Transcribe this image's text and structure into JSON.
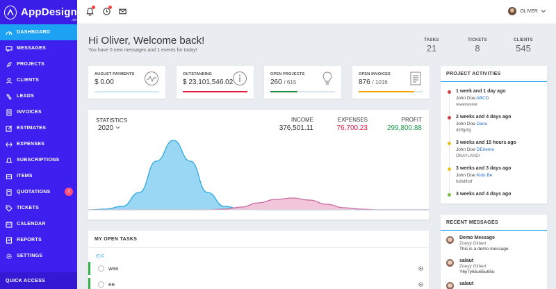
{
  "brand": {
    "name": "AppDesign",
    "sub": ".dev"
  },
  "sidebar": {
    "items": [
      {
        "label": "DASHBOARD",
        "icon": "dashboard-icon",
        "active": true
      },
      {
        "label": "MESSAGES",
        "icon": "message-icon"
      },
      {
        "label": "PROJECTS",
        "icon": "rocket-icon"
      },
      {
        "label": "CLIENTS",
        "icon": "users-icon"
      },
      {
        "label": "LEADS",
        "icon": "target-icon"
      },
      {
        "label": "INVOICES",
        "icon": "invoice-icon"
      },
      {
        "label": "ESTIMATES",
        "icon": "edit-icon"
      },
      {
        "label": "EXPENSES",
        "icon": "expenses-icon"
      },
      {
        "label": "SUBSCRIPTIONS",
        "icon": "bell-icon"
      },
      {
        "label": "ITEMS",
        "icon": "box-icon"
      },
      {
        "label": "QUOTATIONS",
        "icon": "quote-icon",
        "badge": "2"
      },
      {
        "label": "TICKETS",
        "icon": "tag-icon"
      },
      {
        "label": "CALENDAR",
        "icon": "calendar-icon"
      },
      {
        "label": "REPORTS",
        "icon": "report-icon"
      },
      {
        "label": "SETTINGS",
        "icon": "gear-icon"
      }
    ],
    "quick_access": "QUICK ACCESS"
  },
  "topbar": {
    "icons": [
      "bell-icon",
      "clock-icon",
      "mail-icon"
    ],
    "user": "OLIVER"
  },
  "welcome": {
    "title": "Hi Oliver, Welcome back!",
    "subtitle": "You have 0 new messages and 1 events for today!"
  },
  "stats": [
    {
      "label": "TASKS",
      "value": "21"
    },
    {
      "label": "TICKETS",
      "value": "8"
    },
    {
      "label": "CLIENTS",
      "value": "545"
    }
  ],
  "cards": [
    {
      "label": "AUGUST PAYMENTS",
      "value": "$ 0.00",
      "sub": "",
      "fill": 1.0,
      "color": "#cfe9f8",
      "icon": "pulse-icon"
    },
    {
      "label": "OUTSTANDING",
      "value": "$ 23,101,546.02",
      "sub": "",
      "fill": 1.0,
      "color": "#e5193b",
      "icon": "info-icon"
    },
    {
      "label": "OPEN PROJECTS",
      "value": "260",
      "sub": "/ 615",
      "fill": 0.42,
      "color": "#1e8e3e",
      "icon": "bulb-icon"
    },
    {
      "label": "OPEN INVOICES",
      "value": "876",
      "sub": "/ 1016",
      "fill": 0.86,
      "color": "#f0a500",
      "icon": "document-icon"
    }
  ],
  "statistics": {
    "label": "STATISTICS",
    "year": "2020",
    "income_label": "INCOME",
    "income": "376,501.11",
    "expenses_label": "EXPENSES",
    "expenses": "76,700.23",
    "profit_label": "PROFIT",
    "profit": "299,800.88"
  },
  "chart_data": {
    "type": "area",
    "series": [
      {
        "values": [
          0.0,
          0.01,
          0.05,
          0.25,
          0.7,
          1.0,
          0.7,
          0.25,
          0.05,
          0.01,
          0.0,
          0.0,
          0.0,
          0.0,
          0.0,
          0.0,
          0.0,
          0.0,
          0.0,
          0.0,
          0.0
        ]
      },
      {
        "values": [
          0.0,
          0.0,
          0.0,
          0.0,
          0.0,
          0.0,
          0.0,
          0.0,
          0.01,
          0.04,
          0.1,
          0.15,
          0.17,
          0.14,
          0.08,
          0.03,
          0.01,
          0.0,
          0.0,
          0.0,
          0.0
        ]
      }
    ],
    "colors": [
      "#8fd3f4",
      "#f0bfd6"
    ],
    "line_colors": [
      "#2aa8dc",
      "#c96aa1"
    ]
  },
  "tasks": {
    "title": "MY OPEN TASKS",
    "filter": "打卡",
    "items": [
      {
        "text": "was"
      },
      {
        "text": "ee"
      }
    ]
  },
  "activities": {
    "title": "PROJECT ACTIVITIES",
    "items": [
      {
        "time": "1 week and 1 day ago",
        "who": "John Doe",
        "project": "ABCD",
        "note": "rewerwerwr",
        "color": "#d23f3f"
      },
      {
        "time": "2 weeks and 4 days ago",
        "who": "John Doe",
        "project": "Danu",
        "note": "dfdfgdfg",
        "color": "#d23f3f"
      },
      {
        "time": "3 weeks and 15 hours ago",
        "who": "John Doe",
        "project": "DEneme",
        "note": "ONAYLANDI",
        "color": "#e7c221"
      },
      {
        "time": "3 weeks and 3 days ago",
        "who": "John Doe",
        "project": "Kido Be",
        "note": "hdhdfhdf",
        "color": "#e7c221"
      },
      {
        "time": "3 weeks and 4 days ago",
        "who": "",
        "project": "",
        "note": "",
        "color": "#7bc043"
      }
    ]
  },
  "messages": {
    "title": "RECENT MESSAGES",
    "items": [
      {
        "title": "Demo Message",
        "from": "Zoeyy Gilbert",
        "body": "This is a demo message."
      },
      {
        "title": "salaut",
        "from": "Zoeyy Gilbert",
        "body": "Y6y7y65u65u65u"
      },
      {
        "title": "salaut",
        "from": "",
        "body": ""
      }
    ]
  }
}
